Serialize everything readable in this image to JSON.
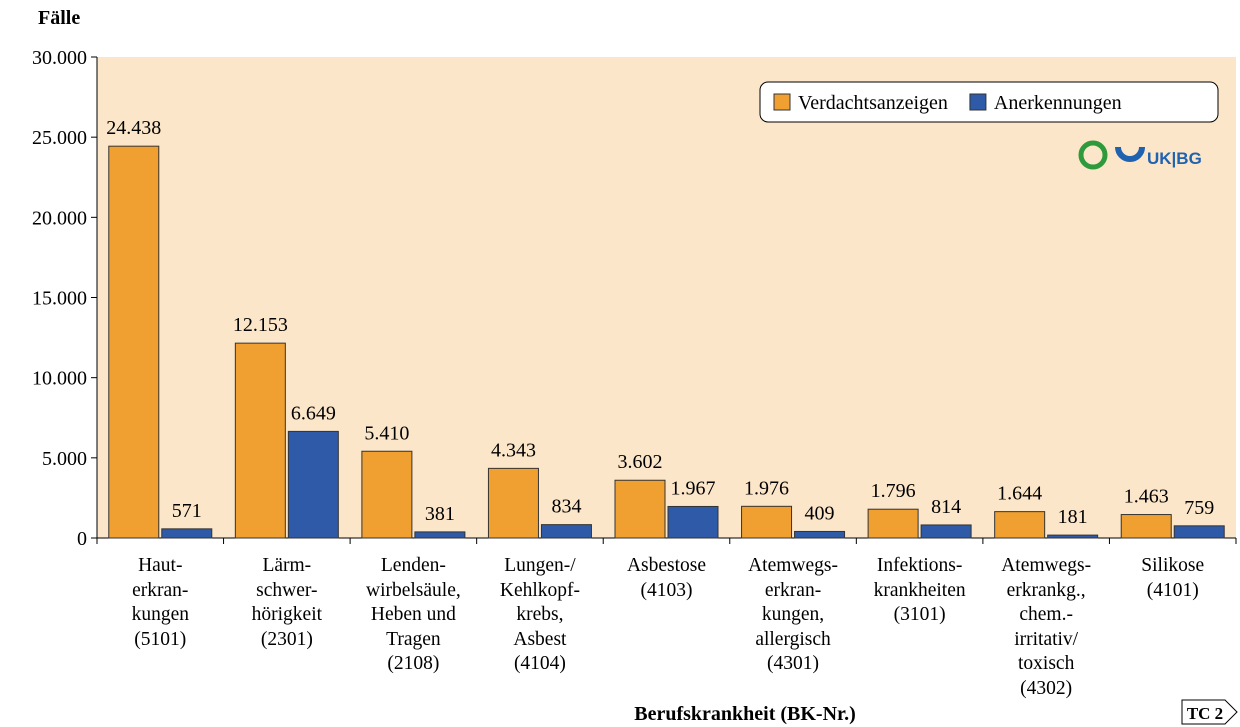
{
  "chart_data": {
    "type": "bar",
    "y_axis_label": "Fälle",
    "x_axis_label": "Berufskrankheit (BK-Nr.)",
    "logo": "UK|BG",
    "badge": "TC 2",
    "categories": [
      "Haut-\nerkran-\nkungen\n(5101)",
      "Lärm-\nschwer-\nhörigkeit\n(2301)",
      "Lenden-\nwirbelsäule,\nHeben und\nTragen\n(2108)",
      "Lungen-/\nKehlkopf-\nkrebs,\nAsbest\n(4104)",
      "Asbestose\n(4103)",
      "Atemwegs-\nerkran-\nkungen,\nallergisch\n(4301)",
      "Infektions-\nkrankheiten\n(3101)",
      "Atemwegs-\nerkrankg.,\nchem.-\nirritativ/\ntoxisch\n(4302)",
      "Silikose\n(4101)"
    ],
    "series": [
      {
        "name": "Verdachtsanzeigen",
        "color": "#f0a030",
        "values": [
          24438,
          12153,
          5410,
          4343,
          3602,
          1976,
          1796,
          1644,
          1463
        ],
        "value_labels": [
          "24.438",
          "12.153",
          "5.410",
          "4.343",
          "3.602",
          "1.976",
          "1.796",
          "1.644",
          "1.463"
        ]
      },
      {
        "name": "Anerkennungen",
        "color": "#2e5aa8",
        "values": [
          571,
          6649,
          381,
          834,
          1967,
          409,
          814,
          181,
          759
        ],
        "value_labels": [
          "571",
          "6.649",
          "381",
          "834",
          "1.967",
          "409",
          "814",
          "181",
          "759"
        ]
      }
    ],
    "ylim": [
      0,
      30000
    ],
    "yticks": [
      {
        "value": 0,
        "label": "0"
      },
      {
        "value": 5000,
        "label": "5.000"
      },
      {
        "value": 10000,
        "label": "10.000"
      },
      {
        "value": 15000,
        "label": "15.000"
      },
      {
        "value": 20000,
        "label": "20.000"
      },
      {
        "value": 25000,
        "label": "25.000"
      },
      {
        "value": 30000,
        "label": "30.000"
      }
    ],
    "legend": "upper right",
    "background": "#fce6c9"
  }
}
